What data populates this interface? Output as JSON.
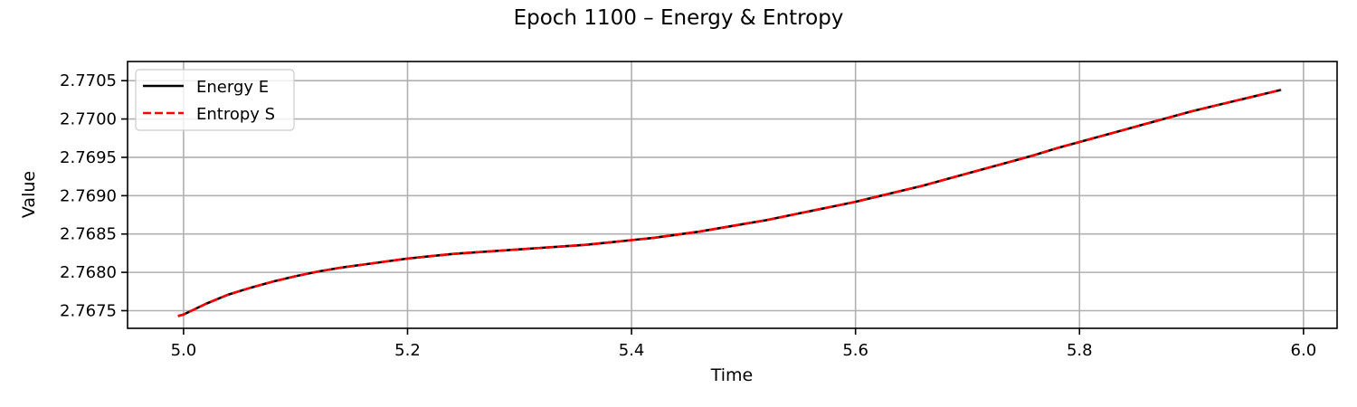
{
  "chart_data": {
    "type": "line",
    "title": "Epoch 1100 – Energy & Entropy",
    "xlabel": "Time",
    "ylabel": "Value",
    "xlim": [
      4.95,
      6.03
    ],
    "ylim": [
      2.76727,
      2.77075
    ],
    "xticks": [
      "5.0",
      "5.2",
      "5.4",
      "5.6",
      "5.8",
      "6.0"
    ],
    "xtick_values": [
      5.0,
      5.2,
      5.4,
      5.6,
      5.8,
      6.0
    ],
    "yticks": [
      "2.7675",
      "2.7680",
      "2.7685",
      "2.7690",
      "2.7695",
      "2.7700",
      "2.7705"
    ],
    "ytick_values": [
      2.7675,
      2.768,
      2.7685,
      2.769,
      2.7695,
      2.77,
      2.7705
    ],
    "grid": true,
    "legend_position": "top-left",
    "x": [
      4.995,
      5.0,
      5.02,
      5.04,
      5.06,
      5.08,
      5.1,
      5.12,
      5.14,
      5.16,
      5.18,
      5.2,
      5.22,
      5.24,
      5.26,
      5.28,
      5.3,
      5.32,
      5.34,
      5.36,
      5.38,
      5.4,
      5.42,
      5.44,
      5.46,
      5.48,
      5.5,
      5.52,
      5.54,
      5.56,
      5.58,
      5.6,
      5.62,
      5.64,
      5.66,
      5.68,
      5.7,
      5.72,
      5.74,
      5.76,
      5.78,
      5.8,
      5.82,
      5.84,
      5.86,
      5.88,
      5.9,
      5.92,
      5.94,
      5.96,
      5.98
    ],
    "series": [
      {
        "name": "Energy E",
        "color": "#000000",
        "style": "solid",
        "values": [
          2.76743,
          2.76745,
          2.76759,
          2.76771,
          2.7678,
          2.76788,
          2.76795,
          2.76801,
          2.76806,
          2.7681,
          2.76814,
          2.76818,
          2.76821,
          2.76824,
          2.76826,
          2.76828,
          2.7683,
          2.76832,
          2.76834,
          2.76836,
          2.76839,
          2.76842,
          2.76845,
          2.76849,
          2.76853,
          2.76858,
          2.76863,
          2.76868,
          2.76874,
          2.7688,
          2.76886,
          2.76892,
          2.76899,
          2.76906,
          2.76913,
          2.76921,
          2.76929,
          2.76937,
          2.76945,
          2.76953,
          2.76962,
          2.7697,
          2.76978,
          2.76986,
          2.76994,
          2.77002,
          2.7701,
          2.77017,
          2.77024,
          2.77031,
          2.77038
        ]
      },
      {
        "name": "Entropy S",
        "color": "#ff0000",
        "style": "dashed",
        "values": [
          2.76743,
          2.76745,
          2.76759,
          2.76771,
          2.7678,
          2.76788,
          2.76795,
          2.76801,
          2.76806,
          2.7681,
          2.76814,
          2.76818,
          2.76821,
          2.76824,
          2.76826,
          2.76828,
          2.7683,
          2.76832,
          2.76834,
          2.76836,
          2.76839,
          2.76842,
          2.76845,
          2.76849,
          2.76853,
          2.76858,
          2.76863,
          2.76868,
          2.76874,
          2.7688,
          2.76886,
          2.76892,
          2.76899,
          2.76906,
          2.76913,
          2.76921,
          2.76929,
          2.76937,
          2.76945,
          2.76953,
          2.76962,
          2.7697,
          2.76978,
          2.76986,
          2.76994,
          2.77002,
          2.7701,
          2.77017,
          2.77024,
          2.77031,
          2.77038
        ]
      }
    ]
  }
}
